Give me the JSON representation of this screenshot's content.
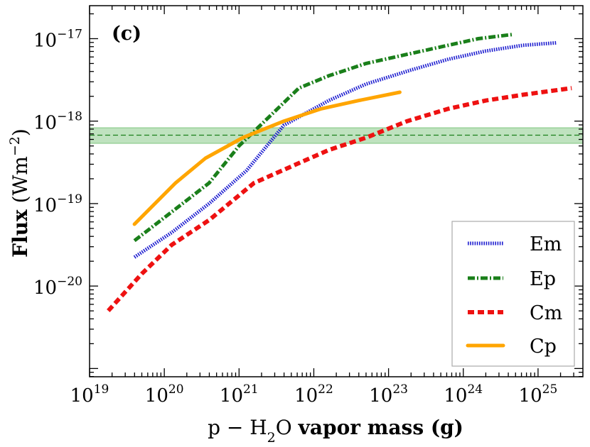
{
  "chart_data": {
    "type": "line",
    "panel_label": "(c)",
    "xscale": "log",
    "yscale": "log",
    "xlim_log10": [
      19,
      25.6
    ],
    "ylim_log10": [
      -21.1,
      -16.6
    ],
    "xlabel": {
      "prefix": "p − H",
      "sub": "2",
      "mid": "O ",
      "bold": "vapor mass (g)"
    },
    "ylabel": {
      "bold": "Flux",
      "unit_pre": " (Wm",
      "unit_sup": "−2",
      "unit_post": ")"
    },
    "x_ticks": [
      {
        "base": "10",
        "exp": "19",
        "log": 19
      },
      {
        "base": "10",
        "exp": "20",
        "log": 20
      },
      {
        "base": "10",
        "exp": "21",
        "log": 21
      },
      {
        "base": "10",
        "exp": "22",
        "log": 22
      },
      {
        "base": "10",
        "exp": "23",
        "log": 23
      },
      {
        "base": "10",
        "exp": "24",
        "log": 24
      },
      {
        "base": "10",
        "exp": "25",
        "log": 25
      }
    ],
    "y_ticks": [
      {
        "base": "10",
        "exp": "−20",
        "log": -20
      },
      {
        "base": "10",
        "exp": "−19",
        "log": -19
      },
      {
        "base": "10",
        "exp": "−18",
        "log": -18
      },
      {
        "base": "10",
        "exp": "−17",
        "log": -17
      }
    ],
    "reference_band": {
      "center_log": -18.17,
      "low_log": -18.27,
      "high_log": -18.08,
      "color": "#2ca02c"
    },
    "series": [
      {
        "name": "Em",
        "color": "#1f1fd0",
        "style": "dotted",
        "points": [
          [
            19.6,
            -19.65
          ],
          [
            20.1,
            -19.35
          ],
          [
            20.6,
            -19.0
          ],
          [
            21.1,
            -18.6
          ],
          [
            21.6,
            -18.05
          ],
          [
            22.2,
            -17.75
          ],
          [
            22.7,
            -17.55
          ],
          [
            23.3,
            -17.38
          ],
          [
            23.8,
            -17.25
          ],
          [
            24.3,
            -17.15
          ],
          [
            24.8,
            -17.08
          ],
          [
            25.25,
            -17.05
          ]
        ]
      },
      {
        "name": "Ep",
        "color": "#1a7f1a",
        "style": "dashdot",
        "points": [
          [
            19.6,
            -19.45
          ],
          [
            20.1,
            -19.1
          ],
          [
            20.6,
            -18.75
          ],
          [
            21.0,
            -18.3
          ],
          [
            21.4,
            -17.95
          ],
          [
            21.8,
            -17.6
          ],
          [
            22.2,
            -17.45
          ],
          [
            22.7,
            -17.3
          ],
          [
            23.2,
            -17.2
          ],
          [
            23.7,
            -17.1
          ],
          [
            24.2,
            -17.0
          ],
          [
            24.65,
            -16.95
          ]
        ]
      },
      {
        "name": "Cm",
        "color": "#ee1111",
        "style": "dashed",
        "points": [
          [
            19.25,
            -20.3
          ],
          [
            19.7,
            -19.85
          ],
          [
            20.1,
            -19.5
          ],
          [
            20.6,
            -19.2
          ],
          [
            21.2,
            -18.75
          ],
          [
            21.7,
            -18.55
          ],
          [
            22.2,
            -18.35
          ],
          [
            22.7,
            -18.2
          ],
          [
            23.25,
            -18.0
          ],
          [
            23.8,
            -17.85
          ],
          [
            24.3,
            -17.75
          ],
          [
            24.8,
            -17.68
          ],
          [
            25.45,
            -17.6
          ]
        ]
      },
      {
        "name": "Cp",
        "color": "#ffa500",
        "style": "solid",
        "points": [
          [
            19.6,
            -19.25
          ],
          [
            20.15,
            -18.75
          ],
          [
            20.55,
            -18.45
          ],
          [
            21.05,
            -18.2
          ],
          [
            21.6,
            -18.0
          ],
          [
            22.1,
            -17.85
          ],
          [
            22.6,
            -17.75
          ],
          [
            23.15,
            -17.65
          ]
        ]
      }
    ]
  }
}
